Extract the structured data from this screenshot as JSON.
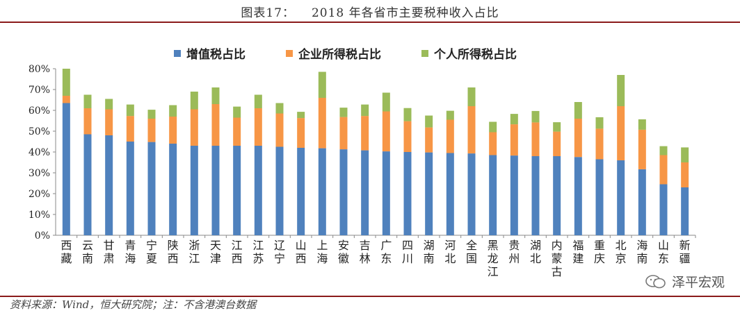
{
  "header": {
    "figure_label": "图表17：",
    "title": "2018 年各省市主要税种收入占比"
  },
  "source": "资料来源：Wind，恒大研究院；注：不含港澳台数据",
  "watermark": {
    "text": "泽平宏观",
    "icon": "wechat-channel-icon"
  },
  "chart_data": {
    "type": "bar",
    "stacked": true,
    "ylim": [
      0,
      80
    ],
    "yticks": [
      "0%",
      "10%",
      "20%",
      "30%",
      "40%",
      "50%",
      "60%",
      "70%",
      "80%"
    ],
    "legend_position": "top",
    "categories": [
      "西藏",
      "云南",
      "甘肃",
      "青海",
      "宁夏",
      "陕西",
      "浙江",
      "天津",
      "江西",
      "江苏",
      "辽宁",
      "山西",
      "上海",
      "安徽",
      "吉林",
      "广东",
      "四川",
      "湖南",
      "河北",
      "全国",
      "黑龙江",
      "贵州",
      "湖北",
      "内蒙古",
      "福建",
      "重庆",
      "北京",
      "海南",
      "山东",
      "新疆"
    ],
    "series": [
      {
        "name": "增值税占比",
        "color": "#4f81bd",
        "values": [
          63.5,
          48.5,
          48,
          45,
          44.8,
          44,
          43,
          43,
          43,
          43,
          42.5,
          42,
          41.8,
          41.3,
          40.8,
          40.3,
          40,
          39.8,
          39.5,
          39.3,
          38.5,
          38.3,
          38,
          38,
          37.6,
          36.5,
          36,
          31.7,
          24.5,
          23
        ]
      },
      {
        "name": "企业所得税占比",
        "color": "#f79646",
        "values": [
          3.5,
          12.5,
          12.5,
          12.3,
          11.2,
          13,
          17.5,
          20,
          13.5,
          18,
          16,
          14.3,
          24.2,
          15.5,
          16.5,
          19.2,
          14.8,
          12,
          16,
          22.7,
          11,
          15,
          16.2,
          11.8,
          18.4,
          14.7,
          26,
          19,
          14,
          12
        ]
      },
      {
        "name": "个人所得税占比",
        "color": "#9bbb59",
        "values": [
          13,
          6.5,
          5,
          5.5,
          4.3,
          5.5,
          8.5,
          8,
          5.3,
          6.5,
          5,
          3,
          12.5,
          4.5,
          5.5,
          9,
          6.3,
          5.7,
          4.3,
          9,
          5,
          5,
          5.5,
          4.5,
          8,
          5.5,
          15,
          5,
          4.3,
          7.2
        ]
      }
    ]
  }
}
